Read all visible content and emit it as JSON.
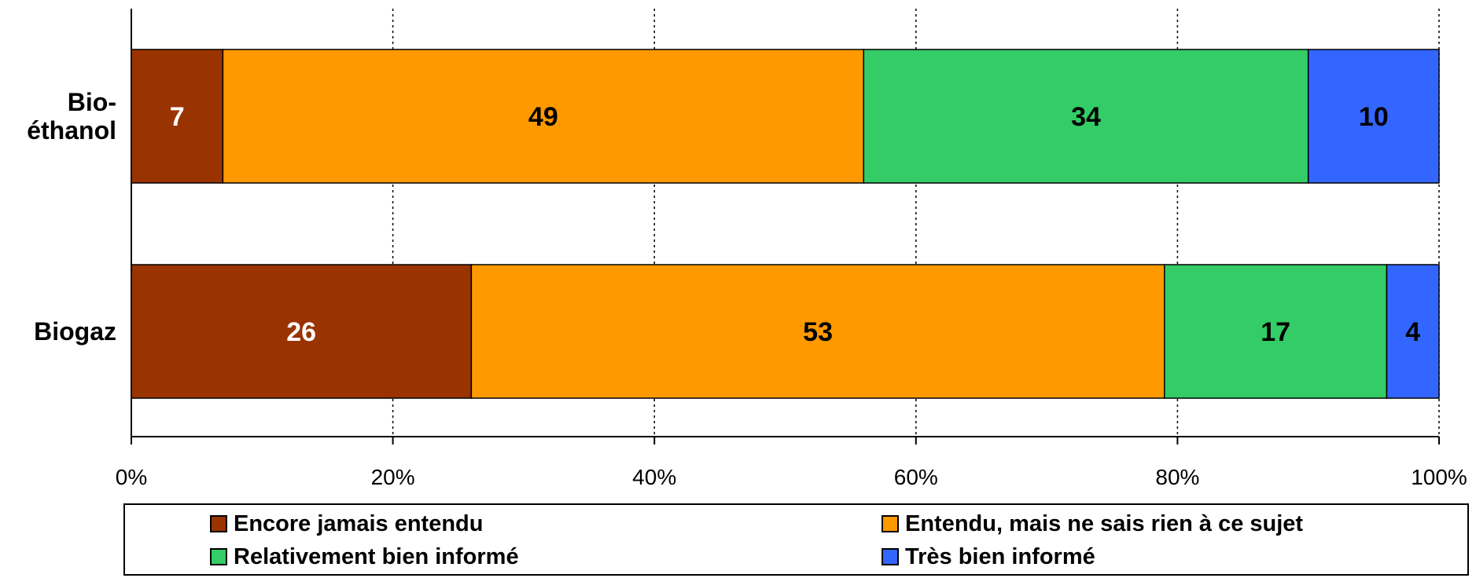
{
  "chart_data": {
    "type": "bar",
    "orientation": "horizontal",
    "stacked": true,
    "percent_stacked": true,
    "categories": [
      "Bio-éthanol",
      "Biogaz"
    ],
    "category_lines": [
      [
        "Bio-",
        "éthanol"
      ],
      [
        "Biogaz"
      ]
    ],
    "series": [
      {
        "name": "Encore jamais entendu",
        "color": "#993300",
        "label_color": "#ffffff",
        "values": [
          7,
          26
        ]
      },
      {
        "name": "Entendu, mais ne sais rien à ce sujet",
        "color": "#FF9900",
        "label_color": "#000000",
        "values": [
          49,
          53
        ]
      },
      {
        "name": "Relativement bien informé",
        "color": "#33CC66",
        "label_color": "#000000",
        "values": [
          34,
          17
        ]
      },
      {
        "name": "Très bien informé",
        "color": "#3366FF",
        "label_color": "#000000",
        "values": [
          10,
          4
        ]
      }
    ],
    "xaxis": {
      "ticks": [
        "0%",
        "20%",
        "40%",
        "60%",
        "80%",
        "100%"
      ],
      "range": [
        0,
        100
      ]
    },
    "grid": "vertical dotted",
    "legend_position": "bottom"
  }
}
